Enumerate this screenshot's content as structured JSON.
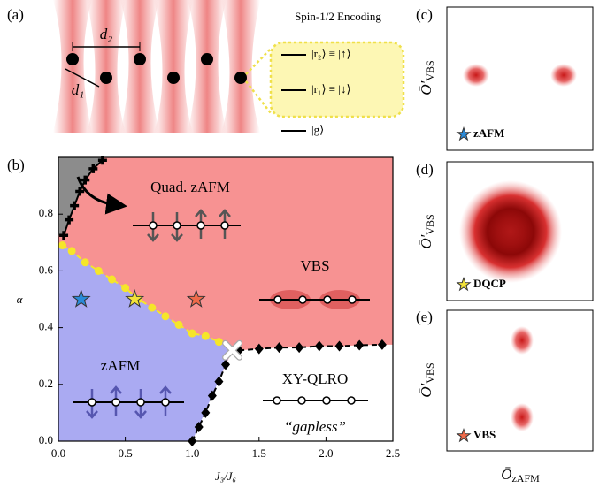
{
  "panel_a": {
    "label": "(a)",
    "d2": "d₂",
    "d1": "d₁",
    "encoding_title": "Spin-1/2 Encoding",
    "levels": [
      "|r₂⟩ ≡ |↑⟩",
      "|r₁⟩ ≡ |↓⟩",
      "|g⟩"
    ]
  },
  "chart_data": {
    "type": "phase",
    "label": "(b)",
    "xlabel": "J₃/J₆",
    "ylabel": "α",
    "xlim": [
      0,
      2.5
    ],
    "ylim": [
      0,
      1.0
    ],
    "xticks": [
      {
        "value": 0,
        "label": "0.0"
      },
      0.5,
      {
        "value": 1,
        "label": "1.0"
      },
      1.5,
      {
        "value": 2,
        "label": "2.0"
      },
      2.5
    ],
    "yticks": [
      {
        "value": 0,
        "label": "0.0"
      },
      0.2,
      0.4,
      0.6,
      0.8
    ],
    "region_colors": [
      "#f79292",
      "#8c8c8c",
      "#aaaaf2",
      "#ffffff"
    ],
    "phase_labels": [
      "Quad. zAFM",
      "VBS",
      "zAFM",
      "XY-QLRO",
      "“gapless”"
    ],
    "series": [
      {
        "marker": "plus",
        "linestyle": "solid",
        "color": "#000000",
        "x": [
          0.04,
          0.08,
          0.12,
          0.16,
          0.2,
          0.26,
          0.33
        ],
        "values": [
          0.725,
          0.78,
          0.83,
          0.88,
          0.92,
          0.96,
          0.99
        ]
      },
      {
        "marker": "circle",
        "linestyle": "dashed",
        "color": "#f5e62a",
        "x": [
          0.03,
          0.1,
          0.2,
          0.3,
          0.4,
          0.5,
          0.6,
          0.7,
          0.8,
          0.9,
          1.0,
          1.1,
          1.2
        ],
        "values": [
          0.69,
          0.67,
          0.63,
          0.6,
          0.57,
          0.54,
          0.5,
          0.47,
          0.44,
          0.41,
          0.38,
          0.37,
          0.35
        ]
      },
      {
        "marker": "diamond",
        "linestyle": "dashed",
        "color": "#000000",
        "x": [
          1.0,
          1.05,
          1.1,
          1.15,
          1.2,
          1.25
        ],
        "values": [
          0.0,
          0.05,
          0.1,
          0.16,
          0.21,
          0.27
        ]
      },
      {
        "marker": "diamond",
        "linestyle": "dashed",
        "color": "#000000",
        "x": [
          1.35,
          1.5,
          1.65,
          1.8,
          1.95,
          2.1,
          2.25,
          2.42
        ],
        "values": [
          0.32,
          0.325,
          0.33,
          0.33,
          0.335,
          0.335,
          0.338,
          0.34
        ]
      },
      {
        "marker": "x",
        "linestyle": "none",
        "color": "#ffffff",
        "x": [
          1.3
        ],
        "values": [
          0.32
        ]
      },
      {
        "marker": "star",
        "linestyle": "none",
        "colors": [
          "#2a8ad8",
          "#f2e23a",
          "#f06a4a"
        ],
        "x": [
          0.17,
          0.57,
          1.03
        ],
        "values": [
          0.5,
          0.5,
          0.5
        ]
      }
    ]
  },
  "histograms": {
    "y_symbol": "Ō′",
    "y_sub": "VBS",
    "x_symbol": "Ō",
    "x_sub": "zAFM",
    "panels": [
      {
        "label": "(c)",
        "state": "zAFM",
        "star_color": "#2a8ad8"
      },
      {
        "label": "(d)",
        "state": "DQCP",
        "star_color": "#f2e23a"
      },
      {
        "label": "(e)",
        "state": "VBS",
        "star_color": "#f06a4a"
      }
    ]
  }
}
